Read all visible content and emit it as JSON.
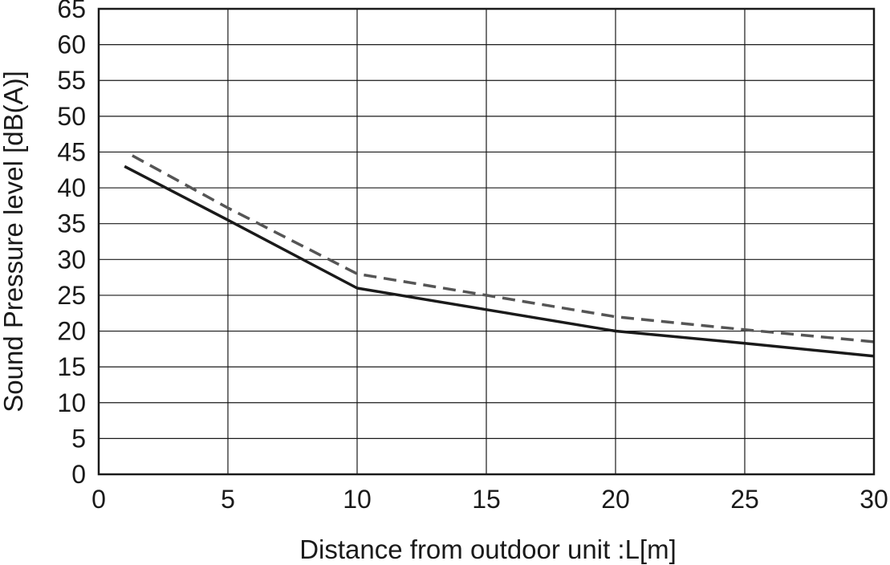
{
  "chart_data": {
    "type": "line",
    "title": "",
    "xlabel": "Distance from outdoor unit  :L[m]",
    "ylabel": "Sound Pressure level [dB(A)]",
    "xlim": [
      0,
      30
    ],
    "ylim": [
      0,
      65
    ],
    "xticks": [
      0,
      5,
      10,
      15,
      20,
      25,
      30
    ],
    "yticks": [
      0,
      5,
      10,
      15,
      20,
      25,
      30,
      35,
      40,
      45,
      50,
      55,
      60,
      65
    ],
    "grid": true,
    "legend": "none",
    "series": [
      {
        "style": "solid",
        "color": "#1a1a1a",
        "x": [
          1,
          5,
          10,
          15,
          20,
          25,
          30
        ],
        "y": [
          43,
          35.5,
          26,
          23,
          20,
          18.3,
          16.5
        ]
      },
      {
        "style": "dashed",
        "color": "#555555",
        "x": [
          1.3,
          5,
          10,
          15,
          20,
          25,
          30
        ],
        "y": [
          44.5,
          37.2,
          28,
          25,
          22,
          20.2,
          18.5
        ]
      }
    ]
  }
}
